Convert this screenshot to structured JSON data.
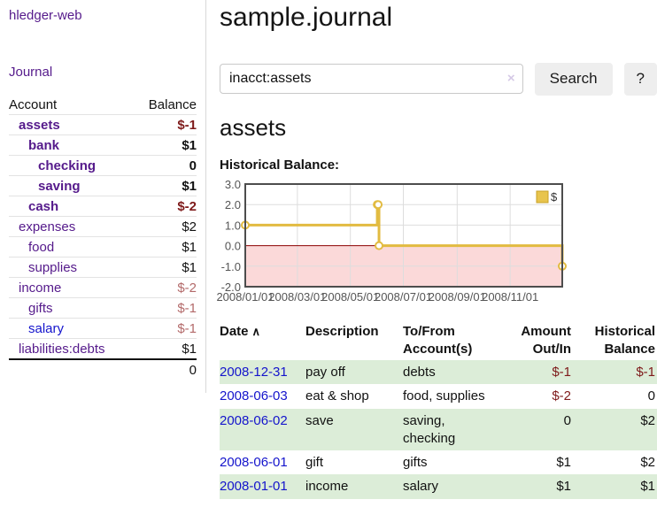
{
  "theme": {
    "link_purple": "#551A8B",
    "link_blue": "#1414CC",
    "negative_strong": "#7E1A1A",
    "negative_muted": "#B36A6A",
    "row_stripe_green": "#DCEDD8"
  },
  "app": {
    "brand": "hledger-web",
    "nav_journal": "Journal"
  },
  "sidebar": {
    "headers": {
      "account": "Account",
      "balance": "Balance"
    },
    "accounts": [
      {
        "name": "assets",
        "balance": "$-1",
        "indent": 1,
        "bold": true,
        "blue": false
      },
      {
        "name": "bank",
        "balance": "$1",
        "indent": 2,
        "bold": true,
        "blue": false
      },
      {
        "name": "checking",
        "balance": "0",
        "indent": 3,
        "bold": true,
        "blue": false
      },
      {
        "name": "saving",
        "balance": "$1",
        "indent": 3,
        "bold": true,
        "blue": false
      },
      {
        "name": "cash",
        "balance": "$-2",
        "indent": 2,
        "bold": true,
        "blue": false
      },
      {
        "name": "expenses",
        "balance": "$2",
        "indent": 1,
        "bold": false,
        "blue": false
      },
      {
        "name": "food",
        "balance": "$1",
        "indent": 2,
        "bold": false,
        "blue": false
      },
      {
        "name": "supplies",
        "balance": "$1",
        "indent": 2,
        "bold": false,
        "blue": false
      },
      {
        "name": "income",
        "balance": "$-2",
        "indent": 1,
        "bold": false,
        "blue": false
      },
      {
        "name": "gifts",
        "balance": "$-1",
        "indent": 2,
        "bold": false,
        "blue": false
      },
      {
        "name": "salary",
        "balance": "$-1",
        "indent": 2,
        "bold": false,
        "blue": true
      },
      {
        "name": "liabilities:debts",
        "balance": "$1",
        "indent": 1,
        "bold": false,
        "blue": false
      }
    ],
    "total": "0"
  },
  "header": {
    "title": "sample.journal"
  },
  "search": {
    "value": "inacct:assets",
    "clear_label": "×",
    "button_label": "Search",
    "help_label": "?"
  },
  "main": {
    "account_title": "assets",
    "chart_label": "Historical Balance:"
  },
  "chart_data": {
    "type": "area-step-line",
    "title": "Historical Balance:",
    "legend": "$",
    "x_range": [
      "2008-01-01",
      "2008-12-31"
    ],
    "x_ticks": [
      "2008/01/01",
      "2008/03/01",
      "2008/05/01",
      "2008/07/01",
      "2008/09/01",
      "2008/11/01"
    ],
    "y_ticks": [
      3.0,
      2.0,
      1.0,
      0.0,
      -1.0,
      -2.0
    ],
    "ylim": [
      -2,
      3
    ],
    "points": [
      {
        "date": "2008-01-01",
        "value": 1
      },
      {
        "date": "2008-06-01",
        "value": 2
      },
      {
        "date": "2008-06-02",
        "value": 2
      },
      {
        "date": "2008-06-03",
        "value": 0
      },
      {
        "date": "2008-12-31",
        "value": -1
      }
    ],
    "colors": {
      "line": "#E2BB41",
      "marker_fill": "#FFFFFF",
      "legend_fill": "#E8C44D",
      "legend_border": "#C9A227",
      "area_negative": "#FBD9D9",
      "zero_line": "#8B0000",
      "grid": "#DDDDDD",
      "border": "#4D4D4D",
      "tick_text": "#555555"
    }
  },
  "register": {
    "headers": {
      "date": "Date",
      "sort_caret": "∧",
      "description": "Description",
      "accounts": "To/From Account(s)",
      "amount": "Amount Out/In",
      "balance": "Historical Balance"
    },
    "rows": [
      {
        "date": "2008-12-31",
        "description": "pay off",
        "accounts": [
          "debts"
        ],
        "amount": "$-1",
        "balance": "$-1"
      },
      {
        "date": "2008-06-03",
        "description": "eat & shop",
        "accounts": [
          "food",
          "supplies"
        ],
        "amount": "$-2",
        "balance": "0"
      },
      {
        "date": "2008-06-02",
        "description": "save",
        "accounts": [
          "saving",
          "checking"
        ],
        "amount": "0",
        "balance": "$2"
      },
      {
        "date": "2008-06-01",
        "description": "gift",
        "accounts": [
          "gifts"
        ],
        "amount": "$1",
        "balance": "$2"
      },
      {
        "date": "2008-01-01",
        "description": "income",
        "accounts": [
          "salary"
        ],
        "amount": "$1",
        "balance": "$1"
      }
    ]
  }
}
